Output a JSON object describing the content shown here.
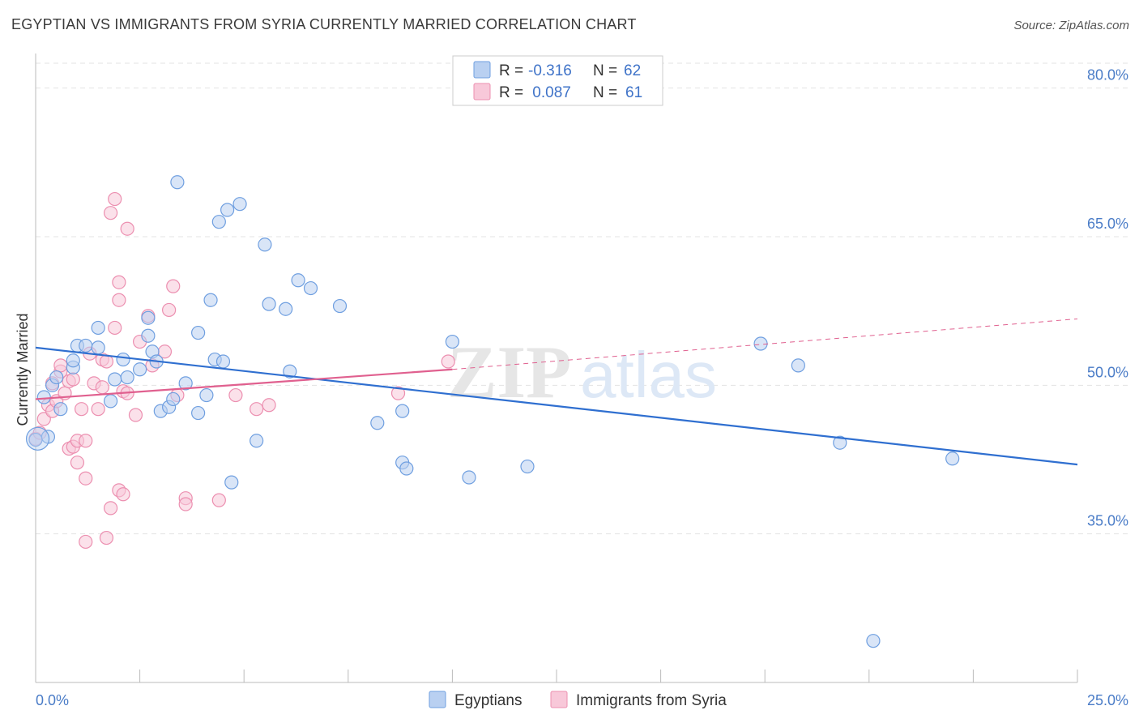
{
  "title": "EGYPTIAN VS IMMIGRANTS FROM SYRIA CURRENTLY MARRIED CORRELATION CHART",
  "source": "Source: ZipAtlas.com",
  "watermark": {
    "zip": "ZIP",
    "atlas": "atlas"
  },
  "colors": {
    "blue": "#6f9fe0",
    "blue_fill": "#b9d0f1",
    "blue_line": "#2f6fd0",
    "pink": "#ec8fb0",
    "pink_fill": "#f8c8d9",
    "pink_line": "#e0608f",
    "tick_text": "#4a7cc7",
    "grid": "#e3e3e3"
  },
  "legend": {
    "rows": [
      {
        "r_label": "R = ",
        "r_value": "-0.316",
        "n_label": "N = ",
        "n_value": "62"
      },
      {
        "r_label": "R = ",
        "r_value": " 0.087",
        "n_label": "N = ",
        "n_value": "61"
      }
    ]
  },
  "bottom_legend": [
    "Egyptians",
    "Immigrants from Syria"
  ],
  "chart_data": {
    "type": "scatter",
    "title": "EGYPTIAN VS IMMIGRANTS FROM SYRIA CURRENTLY MARRIED CORRELATION CHART",
    "ylabel": "Currently Married",
    "xlim": [
      0,
      25
    ],
    "ylim": [
      20,
      83
    ],
    "y_ticks": [
      35,
      50,
      65,
      80
    ],
    "y_tick_labels": [
      "35.0%",
      "50.0%",
      "65.0%",
      "80.0%"
    ],
    "x_tick_labels": [
      "0.0%",
      "25.0%"
    ],
    "grid": true,
    "legend_position": "top-center",
    "series": [
      {
        "name": "Egyptians",
        "r": -0.316,
        "n": 62,
        "trend": {
          "x": [
            0,
            25
          ],
          "y": [
            53.8,
            42.0
          ]
        },
        "points": [
          [
            0.0,
            44.5
          ],
          [
            0.3,
            44.8
          ],
          [
            0.2,
            48.8
          ],
          [
            0.4,
            50.0
          ],
          [
            0.5,
            50.8
          ],
          [
            0.6,
            47.6
          ],
          [
            0.9,
            51.8
          ],
          [
            0.9,
            52.5
          ],
          [
            1.0,
            54.0
          ],
          [
            1.5,
            55.8
          ],
          [
            1.2,
            54.0
          ],
          [
            1.5,
            53.8
          ],
          [
            1.8,
            48.4
          ],
          [
            1.9,
            50.6
          ],
          [
            2.1,
            52.6
          ],
          [
            2.2,
            50.8
          ],
          [
            2.5,
            51.6
          ],
          [
            2.7,
            56.8
          ],
          [
            2.7,
            55.0
          ],
          [
            2.8,
            53.4
          ],
          [
            2.9,
            52.4
          ],
          [
            3.0,
            47.4
          ],
          [
            3.2,
            47.8
          ],
          [
            3.3,
            48.6
          ],
          [
            3.4,
            70.5
          ],
          [
            3.6,
            50.2
          ],
          [
            3.9,
            55.3
          ],
          [
            3.9,
            47.2
          ],
          [
            4.1,
            49.0
          ],
          [
            4.2,
            58.6
          ],
          [
            4.3,
            52.6
          ],
          [
            4.4,
            66.5
          ],
          [
            4.6,
            67.7
          ],
          [
            4.5,
            52.4
          ],
          [
            4.7,
            40.2
          ],
          [
            4.9,
            68.3
          ],
          [
            5.3,
            44.4
          ],
          [
            5.5,
            64.2
          ],
          [
            5.6,
            58.2
          ],
          [
            6.0,
            57.7
          ],
          [
            6.1,
            51.4
          ],
          [
            6.3,
            60.6
          ],
          [
            6.6,
            59.8
          ],
          [
            7.3,
            58.0
          ],
          [
            8.2,
            46.2
          ],
          [
            8.8,
            47.4
          ],
          [
            8.8,
            42.2
          ],
          [
            8.9,
            41.6
          ],
          [
            10.0,
            54.4
          ],
          [
            10.4,
            40.7
          ],
          [
            11.8,
            41.8
          ],
          [
            17.4,
            54.2
          ],
          [
            18.3,
            52.0
          ],
          [
            19.3,
            44.2
          ],
          [
            20.1,
            24.2
          ],
          [
            22.0,
            42.6
          ]
        ]
      },
      {
        "name": "Immigrants from Syria",
        "r": 0.087,
        "n": 61,
        "trend": {
          "x": [
            0,
            10
          ],
          "y": [
            48.6,
            51.6
          ]
        },
        "trend_dashed": {
          "x": [
            10,
            25
          ],
          "y": [
            51.6,
            56.7
          ]
        },
        "points": [
          [
            0.0,
            44.6
          ],
          [
            0.1,
            45.2
          ],
          [
            0.2,
            46.6
          ],
          [
            0.3,
            48.0
          ],
          [
            0.4,
            47.4
          ],
          [
            0.4,
            50.2
          ],
          [
            0.5,
            48.4
          ],
          [
            0.6,
            51.4
          ],
          [
            0.6,
            52.0
          ],
          [
            0.7,
            49.2
          ],
          [
            0.8,
            50.4
          ],
          [
            0.8,
            43.6
          ],
          [
            0.9,
            43.8
          ],
          [
            1.0,
            44.4
          ],
          [
            1.0,
            42.2
          ],
          [
            1.1,
            47.6
          ],
          [
            1.2,
            40.6
          ],
          [
            1.2,
            44.4
          ],
          [
            1.3,
            53.2
          ],
          [
            1.4,
            50.2
          ],
          [
            1.5,
            47.6
          ],
          [
            1.6,
            49.8
          ],
          [
            1.6,
            52.6
          ],
          [
            1.7,
            52.4
          ],
          [
            1.8,
            67.4
          ],
          [
            1.9,
            68.8
          ],
          [
            1.9,
            55.8
          ],
          [
            2.0,
            58.6
          ],
          [
            2.0,
            60.4
          ],
          [
            2.1,
            49.4
          ],
          [
            2.2,
            49.2
          ],
          [
            2.2,
            65.8
          ],
          [
            2.4,
            47.0
          ],
          [
            2.5,
            54.4
          ],
          [
            2.7,
            57.0
          ],
          [
            2.8,
            52.0
          ],
          [
            3.1,
            53.4
          ],
          [
            3.2,
            57.6
          ],
          [
            3.3,
            60.0
          ],
          [
            3.4,
            49.0
          ],
          [
            3.6,
            38.6
          ],
          [
            3.6,
            38.0
          ],
          [
            4.4,
            38.4
          ],
          [
            4.8,
            49.0
          ],
          [
            5.3,
            47.6
          ],
          [
            5.6,
            48.0
          ],
          [
            8.7,
            49.2
          ],
          [
            9.9,
            52.4
          ],
          [
            1.2,
            34.2
          ],
          [
            1.7,
            34.6
          ],
          [
            1.8,
            37.6
          ],
          [
            2.0,
            39.4
          ],
          [
            2.1,
            39.0
          ],
          [
            0.9,
            50.6
          ]
        ]
      }
    ]
  }
}
